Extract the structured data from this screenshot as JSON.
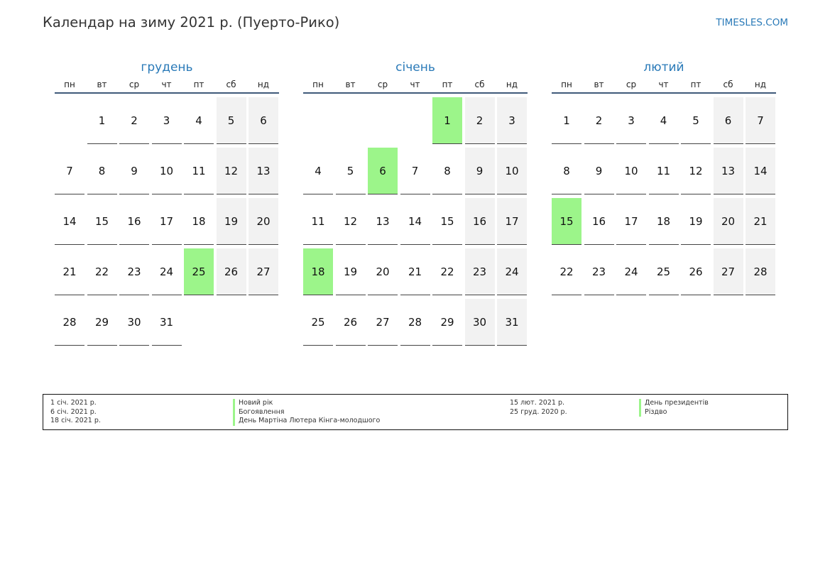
{
  "header": {
    "title": "Календар на зиму 2021 р. (Пуерто-Рико)",
    "site": "TIMESLES.COM"
  },
  "colors": {
    "holiday": "#9cf58a",
    "weekend": "#f2f2f2",
    "accent": "#2a7ab8"
  },
  "weekdays": [
    "пн",
    "вт",
    "ср",
    "чт",
    "пт",
    "сб",
    "нд"
  ],
  "months": [
    {
      "name": "грудень",
      "offset": 1,
      "days": 31,
      "holidays": [
        25
      ]
    },
    {
      "name": "січень",
      "offset": 4,
      "days": 31,
      "holidays": [
        1,
        6,
        18
      ]
    },
    {
      "name": "лютий",
      "offset": 0,
      "days": 28,
      "holidays": [
        15
      ]
    }
  ],
  "legend": {
    "left": [
      {
        "date": "1 січ. 2021 р.",
        "name": "Новий рік"
      },
      {
        "date": "6 січ. 2021 р.",
        "name": "Богоявлення"
      },
      {
        "date": "18 січ. 2021 р.",
        "name": "День Мартіна Лютера Кінга-молодшого"
      }
    ],
    "right": [
      {
        "date": "15 лют. 2021 р.",
        "name": "День президентів"
      },
      {
        "date": "25 груд. 2020 р.",
        "name": "Різдво"
      }
    ]
  }
}
